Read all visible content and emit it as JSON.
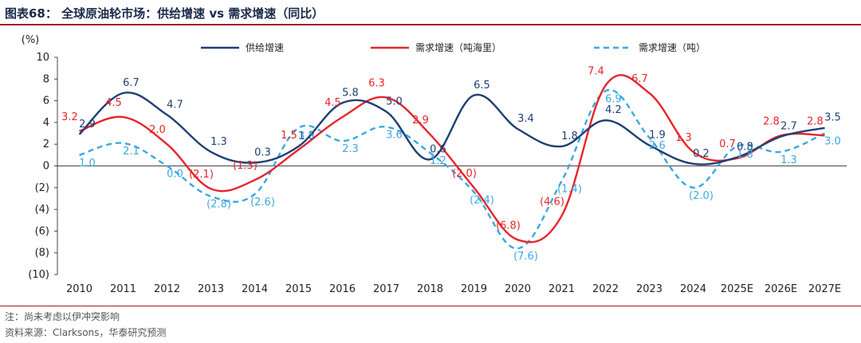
{
  "title": "图表68： 全球原油轮市场：供给增速 vs 需求增速（同比）",
  "notes": {
    "note1": "注：尚未考虑以伊冲突影响",
    "source": "资料来源：Clarksons，华泰研究预测"
  },
  "colors": {
    "supply": "#1f3f73",
    "demand_nm": "#e8242a",
    "demand_t": "#3aa8e0"
  },
  "chart_data": {
    "type": "line",
    "ylabel": "(%)",
    "ylim": [
      -10,
      10
    ],
    "yticks": [
      "10",
      "8",
      "6",
      "4",
      "2",
      "0",
      "(2)",
      "(4)",
      "(6)",
      "(8)",
      "(10)"
    ],
    "ytick_values": [
      10,
      8,
      6,
      4,
      2,
      0,
      -2,
      -4,
      -6,
      -8,
      -10
    ],
    "categories": [
      "2010",
      "2011",
      "2012",
      "2013",
      "2014",
      "2015",
      "2016",
      "2017",
      "2018",
      "2019",
      "2020",
      "2021",
      "2022",
      "2023",
      "2024",
      "2025E",
      "2026E",
      "2027E"
    ],
    "legend_position": "top",
    "series": [
      {
        "name": "供给增速",
        "key": "supply",
        "style": "solid",
        "values": [
          2.9,
          6.7,
          4.7,
          1.3,
          0.3,
          1.8,
          5.8,
          5.0,
          0.6,
          6.5,
          3.4,
          1.8,
          4.2,
          1.9,
          0.2,
          0.8,
          2.7,
          3.5
        ],
        "labels": [
          "2.9",
          "6.7",
          "4.7",
          "1.3",
          "0.3",
          "1.8",
          "5.8",
          "5.0",
          "0.6",
          "6.5",
          "3.4",
          "1.8",
          "4.2",
          "1.9",
          "0.2",
          "0.8",
          "2.7",
          "3.5"
        ]
      },
      {
        "name": "需求增速（吨海里）",
        "key": "demand_nm",
        "style": "solid",
        "values": [
          3.2,
          4.5,
          2.0,
          -2.1,
          -1.3,
          1.5,
          4.5,
          6.3,
          2.9,
          -2.0,
          -6.8,
          -4.6,
          7.4,
          6.7,
          1.3,
          0.7,
          2.8,
          2.8
        ],
        "labels": [
          "3.2",
          "4.5",
          "2.0",
          "(2.1)",
          "(1.3)",
          "1.5",
          "4.5",
          "6.3",
          "2.9",
          "(2.0)",
          "(6.8)",
          "(4.6)",
          "7.4",
          "6.7",
          "1.3",
          "0.7",
          "2.8",
          "2.8"
        ]
      },
      {
        "name": "需求增速（吨）",
        "key": "demand_t",
        "style": "dashed",
        "values": [
          1.0,
          2.1,
          0.0,
          -2.8,
          -2.6,
          3.5,
          2.3,
          3.6,
          1.2,
          -2.4,
          -7.6,
          -1.4,
          6.9,
          2.6,
          -2.0,
          1.8,
          1.3,
          3.0
        ],
        "labels": [
          "1.0",
          "2.1",
          "0.0",
          "(2.8)",
          "(2.6)",
          "3.5",
          "2.3",
          "3.6",
          "1.2",
          "(2.4)",
          "(7.6)",
          "(1.4)",
          "6.9",
          "2.6",
          "(2.0)",
          "1.8",
          "1.3",
          "3.0"
        ]
      }
    ]
  }
}
